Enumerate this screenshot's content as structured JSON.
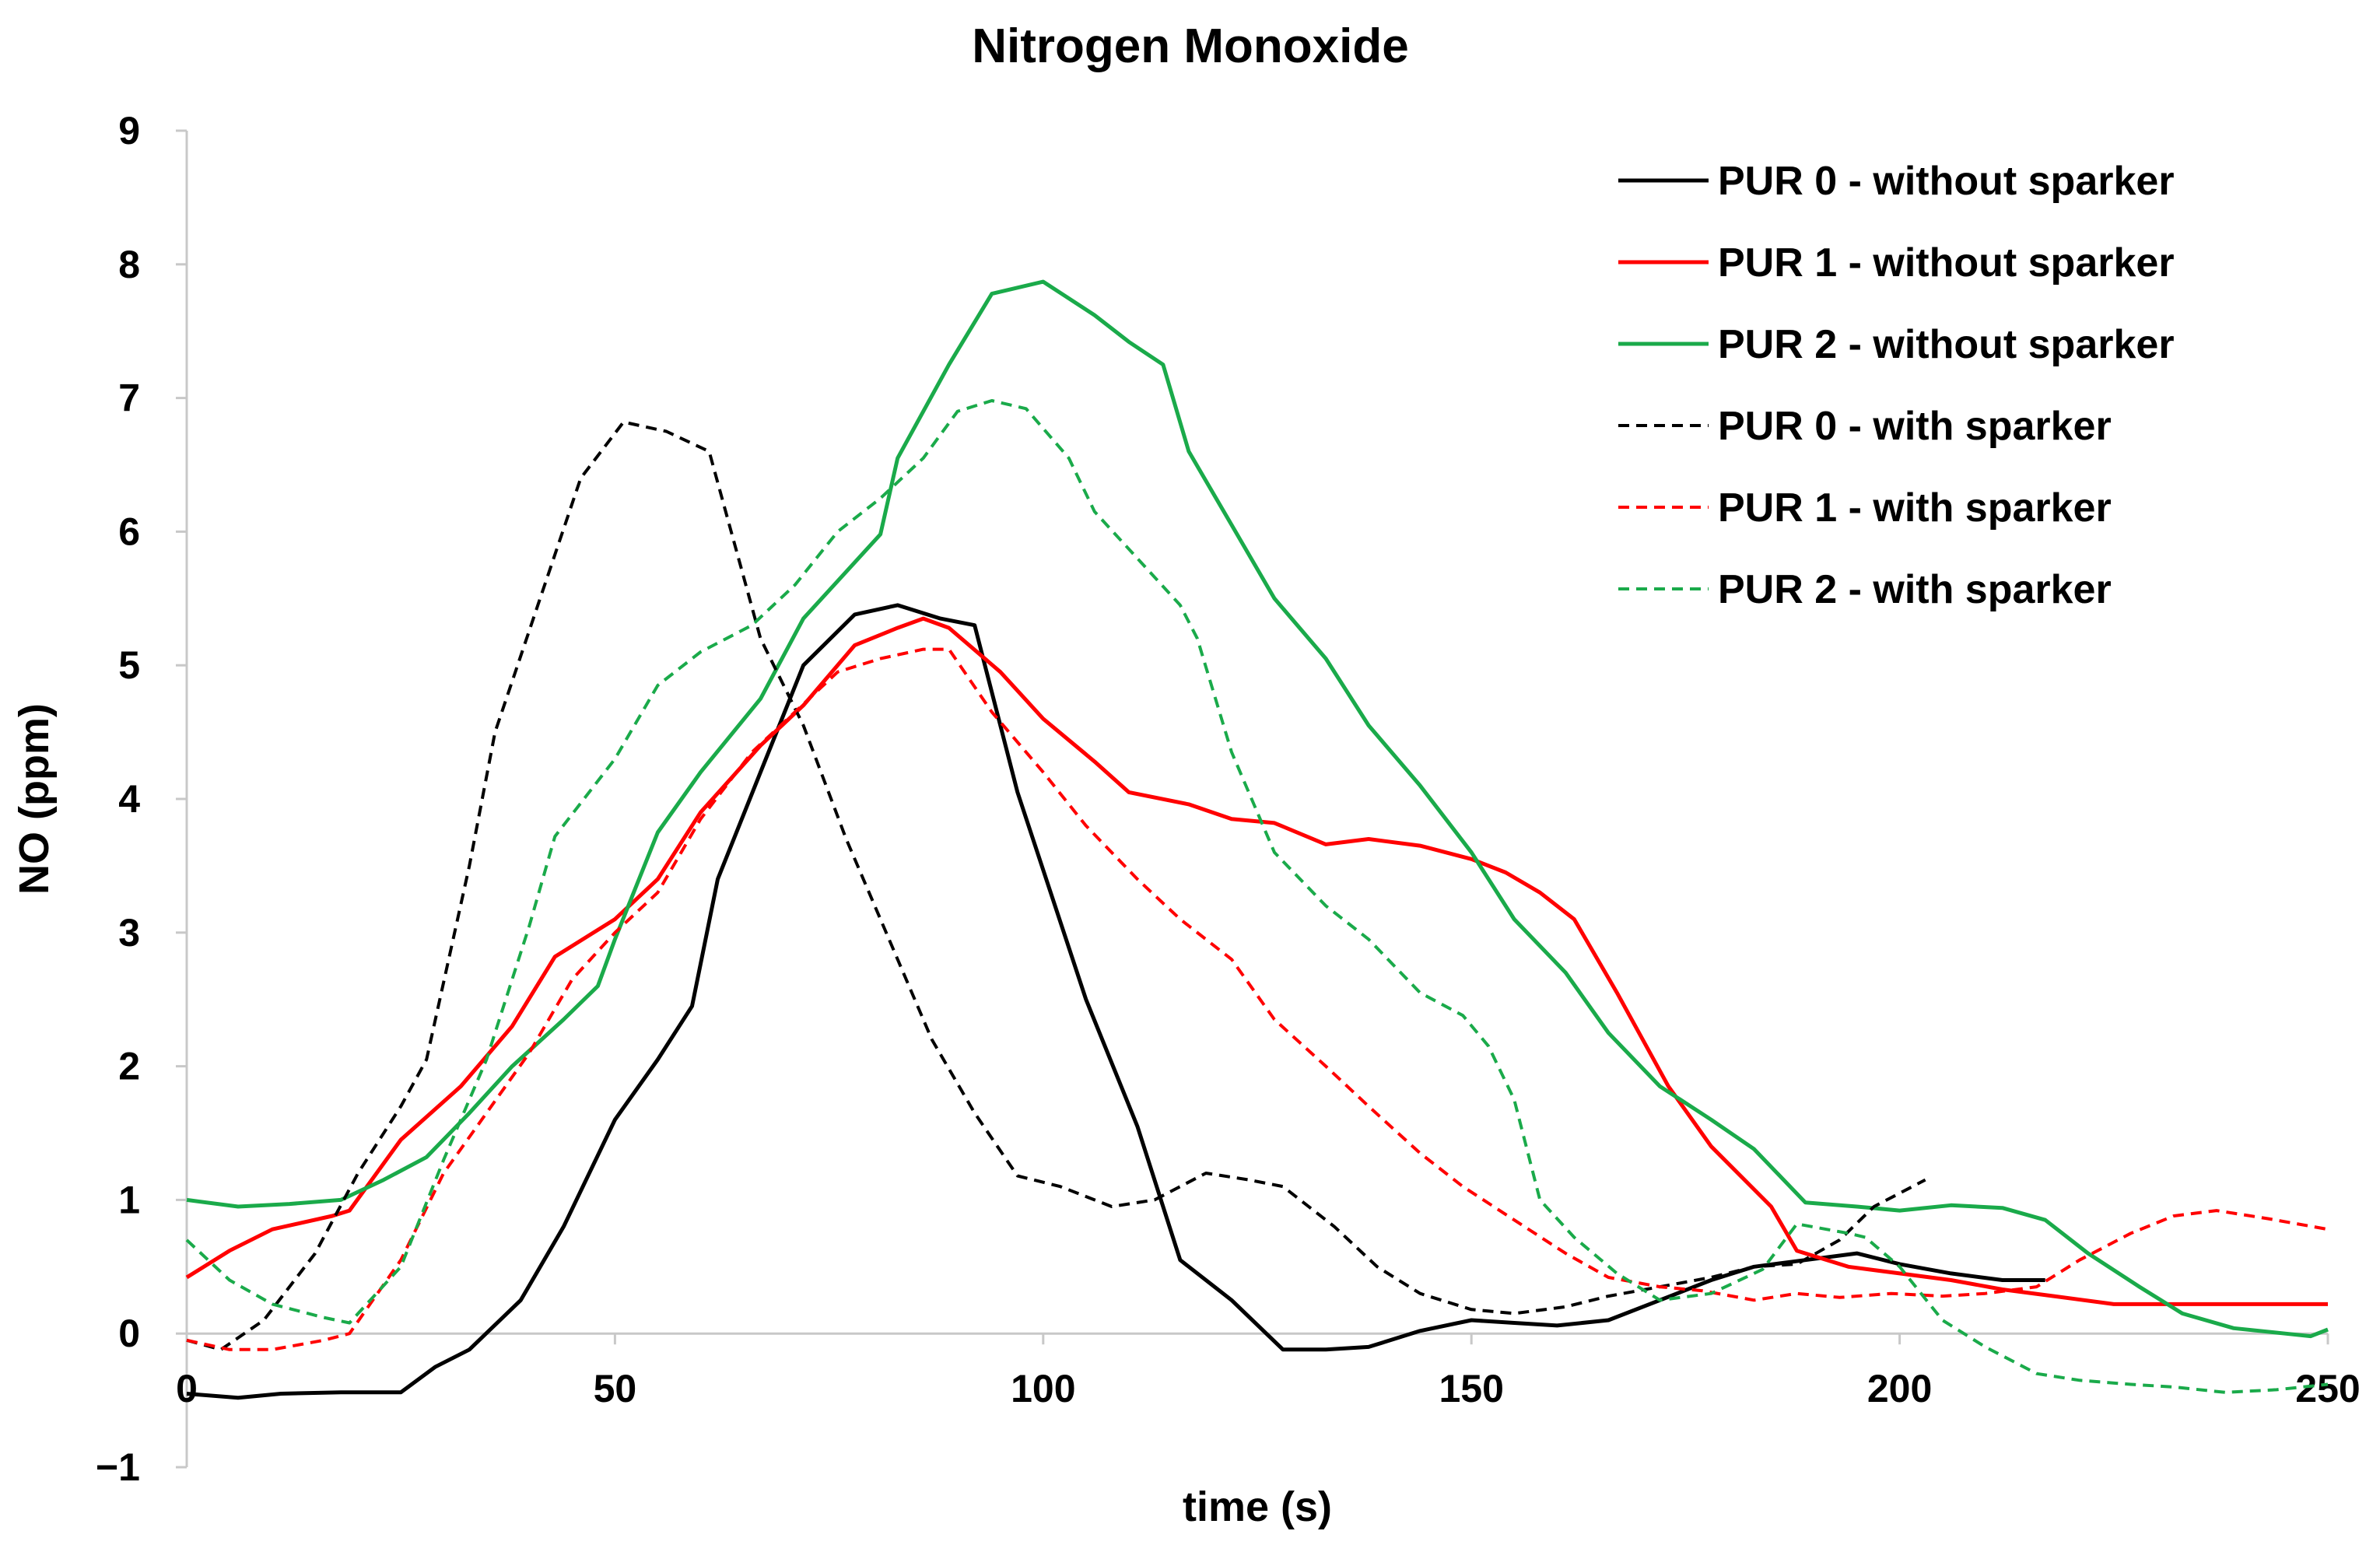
{
  "chart_data": {
    "type": "line",
    "title": "Nitrogen Monoxide",
    "xlabel": "time (s)",
    "ylabel": "NO (ppm)",
    "xlim": [
      0,
      250
    ],
    "ylim": [
      -1,
      9
    ],
    "xticks": [
      0,
      50,
      100,
      150,
      200,
      250
    ],
    "yticks": [
      -1,
      0,
      1,
      2,
      3,
      4,
      5,
      6,
      7,
      8,
      9
    ],
    "xtick_labels": [
      "0",
      "50",
      "100",
      "150",
      "200",
      "250"
    ],
    "ytick_labels": [
      "−1",
      "0",
      "1",
      "2",
      "3",
      "4",
      "5",
      "6",
      "7",
      "8",
      "9"
    ],
    "grid": false,
    "legend_position": "top-right",
    "series": [
      {
        "name": "PUR 0 - without sparker",
        "color": "#000000",
        "dash": "solid",
        "points": [
          [
            0,
            -0.45
          ],
          [
            6,
            -0.48
          ],
          [
            11,
            -0.45
          ],
          [
            18,
            -0.44
          ],
          [
            25,
            -0.44
          ],
          [
            29,
            -0.25
          ],
          [
            33,
            -0.12
          ],
          [
            39,
            0.25
          ],
          [
            44,
            0.8
          ],
          [
            50,
            1.6
          ],
          [
            55,
            2.05
          ],
          [
            59,
            2.45
          ],
          [
            62,
            3.4
          ],
          [
            67,
            4.2
          ],
          [
            72,
            5.0
          ],
          [
            78,
            5.38
          ],
          [
            83,
            5.45
          ],
          [
            88,
            5.35
          ],
          [
            92,
            5.3
          ],
          [
            97,
            4.05
          ],
          [
            105,
            2.5
          ],
          [
            111,
            1.55
          ],
          [
            116,
            0.55
          ],
          [
            122,
            0.25
          ],
          [
            128,
            -0.12
          ],
          [
            133,
            -0.12
          ],
          [
            138,
            -0.1
          ],
          [
            144,
            0.02
          ],
          [
            150,
            0.1
          ],
          [
            155,
            0.08
          ],
          [
            160,
            0.06
          ],
          [
            166,
            0.1
          ],
          [
            172,
            0.25
          ],
          [
            178,
            0.4
          ],
          [
            183,
            0.5
          ],
          [
            189,
            0.55
          ],
          [
            195,
            0.6
          ],
          [
            200,
            0.52
          ],
          [
            206,
            0.45
          ],
          [
            212,
            0.4
          ],
          [
            217,
            0.4
          ]
        ]
      },
      {
        "name": "PUR 1 - without sparker",
        "color": "#ff0000",
        "dash": "solid",
        "points": [
          [
            0,
            0.42
          ],
          [
            5,
            0.62
          ],
          [
            10,
            0.78
          ],
          [
            17,
            0.88
          ],
          [
            19,
            0.92
          ],
          [
            25,
            1.45
          ],
          [
            32,
            1.85
          ],
          [
            38,
            2.3
          ],
          [
            43,
            2.82
          ],
          [
            50,
            3.1
          ],
          [
            55,
            3.4
          ],
          [
            60,
            3.9
          ],
          [
            67,
            4.4
          ],
          [
            72,
            4.7
          ],
          [
            78,
            5.15
          ],
          [
            83,
            5.28
          ],
          [
            86,
            5.35
          ],
          [
            89,
            5.28
          ],
          [
            95,
            4.95
          ],
          [
            100,
            4.6
          ],
          [
            106,
            4.28
          ],
          [
            110,
            4.05
          ],
          [
            117,
            3.96
          ],
          [
            122,
            3.85
          ],
          [
            127,
            3.82
          ],
          [
            133,
            3.66
          ],
          [
            138,
            3.7
          ],
          [
            144,
            3.65
          ],
          [
            150,
            3.55
          ],
          [
            154,
            3.45
          ],
          [
            158,
            3.3
          ],
          [
            162,
            3.1
          ],
          [
            167,
            2.55
          ],
          [
            173,
            1.85
          ],
          [
            178,
            1.4
          ],
          [
            185,
            0.95
          ],
          [
            188,
            0.62
          ],
          [
            194,
            0.5
          ],
          [
            200,
            0.45
          ],
          [
            206,
            0.4
          ],
          [
            212,
            0.33
          ],
          [
            218,
            0.28
          ],
          [
            225,
            0.22
          ],
          [
            231,
            0.22
          ],
          [
            237,
            0.22
          ],
          [
            243,
            0.22
          ],
          [
            250,
            0.22
          ]
        ]
      },
      {
        "name": "PUR 2 - without sparker",
        "color": "#1aaa4a",
        "dash": "solid",
        "points": [
          [
            0,
            1.0
          ],
          [
            6,
            0.95
          ],
          [
            12,
            0.97
          ],
          [
            18,
            1.0
          ],
          [
            23,
            1.15
          ],
          [
            28,
            1.32
          ],
          [
            33,
            1.65
          ],
          [
            38,
            2.0
          ],
          [
            44,
            2.35
          ],
          [
            48,
            2.6
          ],
          [
            50,
            2.95
          ],
          [
            55,
            3.75
          ],
          [
            60,
            4.2
          ],
          [
            67,
            4.75
          ],
          [
            72,
            5.35
          ],
          [
            77,
            5.7
          ],
          [
            81,
            5.98
          ],
          [
            83,
            6.55
          ],
          [
            89,
            7.25
          ],
          [
            94,
            7.78
          ],
          [
            100,
            7.87
          ],
          [
            106,
            7.62
          ],
          [
            110,
            7.42
          ],
          [
            114,
            7.25
          ],
          [
            117,
            6.6
          ],
          [
            122,
            6.05
          ],
          [
            127,
            5.5
          ],
          [
            133,
            5.05
          ],
          [
            138,
            4.55
          ],
          [
            144,
            4.1
          ],
          [
            150,
            3.6
          ],
          [
            155,
            3.1
          ],
          [
            161,
            2.7
          ],
          [
            166,
            2.25
          ],
          [
            172,
            1.85
          ],
          [
            178,
            1.6
          ],
          [
            183,
            1.38
          ],
          [
            189,
            0.98
          ],
          [
            195,
            0.95
          ],
          [
            200,
            0.92
          ],
          [
            206,
            0.96
          ],
          [
            212,
            0.94
          ],
          [
            217,
            0.85
          ],
          [
            222,
            0.6
          ],
          [
            228,
            0.35
          ],
          [
            233,
            0.15
          ],
          [
            239,
            0.04
          ],
          [
            245,
            0.0
          ],
          [
            248,
            -0.02
          ],
          [
            250,
            0.03
          ]
        ]
      },
      {
        "name": "PUR 0 - with sparker",
        "color": "#000000",
        "dash": "dashed",
        "points": [
          [
            0,
            -0.05
          ],
          [
            4,
            -0.12
          ],
          [
            9,
            0.1
          ],
          [
            15,
            0.6
          ],
          [
            20,
            1.2
          ],
          [
            25,
            1.7
          ],
          [
            28,
            2.05
          ],
          [
            33,
            3.5
          ],
          [
            36,
            4.5
          ],
          [
            41,
            5.45
          ],
          [
            46,
            6.4
          ],
          [
            51,
            6.82
          ],
          [
            56,
            6.75
          ],
          [
            61,
            6.6
          ],
          [
            67,
            5.2
          ],
          [
            72,
            4.55
          ],
          [
            77,
            3.7
          ],
          [
            83,
            2.8
          ],
          [
            87,
            2.2
          ],
          [
            92,
            1.65
          ],
          [
            97,
            1.18
          ],
          [
            102,
            1.1
          ],
          [
            108,
            0.95
          ],
          [
            113,
            1.0
          ],
          [
            119,
            1.2
          ],
          [
            124,
            1.15
          ],
          [
            128,
            1.1
          ],
          [
            134,
            0.8
          ],
          [
            139,
            0.5
          ],
          [
            144,
            0.3
          ],
          [
            150,
            0.18
          ],
          [
            155,
            0.15
          ],
          [
            161,
            0.2
          ],
          [
            166,
            0.28
          ],
          [
            172,
            0.35
          ],
          [
            178,
            0.42
          ],
          [
            183,
            0.5
          ],
          [
            188,
            0.52
          ],
          [
            193,
            0.7
          ],
          [
            197,
            0.95
          ],
          [
            200,
            1.05
          ],
          [
            203,
            1.15
          ]
        ]
      },
      {
        "name": "PUR 1 - with sparker",
        "color": "#ff0000",
        "dash": "dashed",
        "points": [
          [
            0,
            -0.05
          ],
          [
            5,
            -0.12
          ],
          [
            10,
            -0.12
          ],
          [
            16,
            -0.05
          ],
          [
            19,
            0.0
          ],
          [
            25,
            0.55
          ],
          [
            30,
            1.2
          ],
          [
            35,
            1.65
          ],
          [
            40,
            2.1
          ],
          [
            45,
            2.65
          ],
          [
            50,
            3.0
          ],
          [
            55,
            3.3
          ],
          [
            60,
            3.85
          ],
          [
            66,
            4.35
          ],
          [
            71,
            4.65
          ],
          [
            76,
            4.95
          ],
          [
            81,
            5.05
          ],
          [
            86,
            5.12
          ],
          [
            89,
            5.12
          ],
          [
            94,
            4.65
          ],
          [
            100,
            4.2
          ],
          [
            105,
            3.8
          ],
          [
            111,
            3.4
          ],
          [
            116,
            3.1
          ],
          [
            122,
            2.8
          ],
          [
            127,
            2.35
          ],
          [
            133,
            2.0
          ],
          [
            138,
            1.7
          ],
          [
            144,
            1.35
          ],
          [
            149,
            1.1
          ],
          [
            155,
            0.85
          ],
          [
            161,
            0.6
          ],
          [
            166,
            0.42
          ],
          [
            172,
            0.35
          ],
          [
            177,
            0.32
          ],
          [
            183,
            0.25
          ],
          [
            188,
            0.3
          ],
          [
            193,
            0.27
          ],
          [
            199,
            0.3
          ],
          [
            205,
            0.28
          ],
          [
            210,
            0.3
          ],
          [
            216,
            0.35
          ],
          [
            221,
            0.55
          ],
          [
            227,
            0.75
          ],
          [
            232,
            0.88
          ],
          [
            237,
            0.92
          ],
          [
            243,
            0.86
          ],
          [
            250,
            0.78
          ]
        ]
      },
      {
        "name": "PUR 2 - with sparker",
        "color": "#1aaa4a",
        "dash": "dashed",
        "points": [
          [
            0,
            0.7
          ],
          [
            5,
            0.4
          ],
          [
            10,
            0.22
          ],
          [
            16,
            0.12
          ],
          [
            19,
            0.08
          ],
          [
            25,
            0.5
          ],
          [
            30,
            1.3
          ],
          [
            35,
            2.05
          ],
          [
            40,
            3.05
          ],
          [
            43,
            3.72
          ],
          [
            50,
            4.3
          ],
          [
            55,
            4.85
          ],
          [
            60,
            5.1
          ],
          [
            66,
            5.3
          ],
          [
            71,
            5.6
          ],
          [
            76,
            6.0
          ],
          [
            81,
            6.25
          ],
          [
            86,
            6.55
          ],
          [
            90,
            6.9
          ],
          [
            94,
            6.98
          ],
          [
            98,
            6.92
          ],
          [
            103,
            6.55
          ],
          [
            106,
            6.15
          ],
          [
            111,
            5.8
          ],
          [
            116,
            5.45
          ],
          [
            118,
            5.2
          ],
          [
            122,
            4.35
          ],
          [
            127,
            3.6
          ],
          [
            133,
            3.2
          ],
          [
            138,
            2.95
          ],
          [
            144,
            2.55
          ],
          [
            149,
            2.38
          ],
          [
            152,
            2.15
          ],
          [
            155,
            1.75
          ],
          [
            158,
            1.0
          ],
          [
            162,
            0.72
          ],
          [
            167,
            0.45
          ],
          [
            172,
            0.25
          ],
          [
            178,
            0.3
          ],
          [
            184,
            0.48
          ],
          [
            188,
            0.82
          ],
          [
            194,
            0.75
          ],
          [
            196,
            0.72
          ],
          [
            200,
            0.5
          ],
          [
            205,
            0.1
          ],
          [
            210,
            -0.1
          ],
          [
            216,
            -0.3
          ],
          [
            221,
            -0.35
          ],
          [
            227,
            -0.38
          ],
          [
            232,
            -0.4
          ],
          [
            238,
            -0.44
          ],
          [
            244,
            -0.42
          ],
          [
            250,
            -0.38
          ]
        ]
      }
    ]
  }
}
